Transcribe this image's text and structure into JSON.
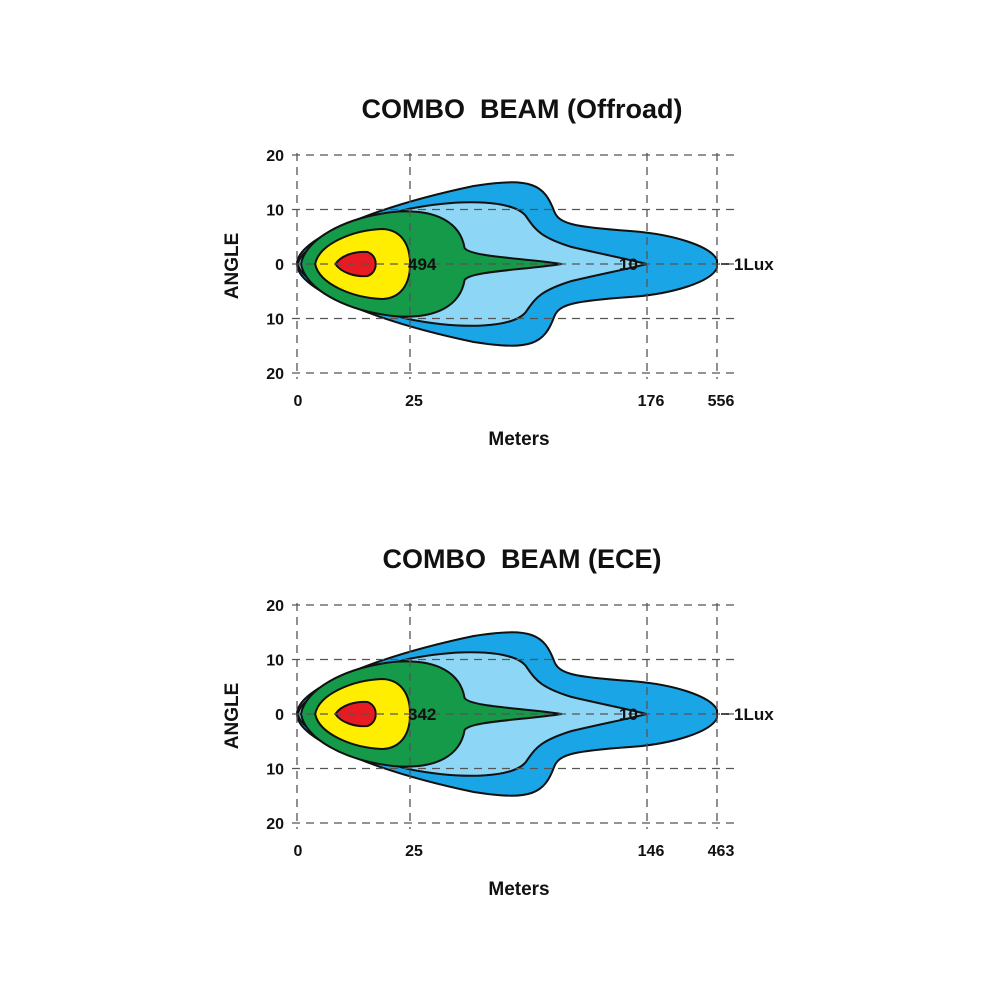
{
  "chart_data": [
    {
      "type": "beam pattern",
      "title": "COMBO  BEAM (Offroad)",
      "xlabel": "Meters",
      "ylabel": "ANGLE",
      "x_ticks": [
        "0",
        "25",
        "176",
        "556"
      ],
      "y_ticks": [
        "20",
        "10",
        "0",
        "10",
        "20"
      ],
      "annotations": [
        {
          "text": "494",
          "at_meters": 25
        },
        {
          "text": "10",
          "at_meters": 176
        },
        {
          "text": "1Lux",
          "at_meters": 556
        }
      ],
      "series": [
        {
          "name": "1Lux",
          "reach_m": 556,
          "color": "#1aa6e6"
        },
        {
          "name": "10",
          "reach_m": 176,
          "color": "#8dd6f5"
        },
        {
          "color": "#149a48"
        },
        {
          "color": "#ffee00"
        },
        {
          "color": "#e81b23"
        }
      ],
      "grid": true
    },
    {
      "type": "beam pattern",
      "title": "COMBO  BEAM (ECE)",
      "xlabel": "Meters",
      "ylabel": "ANGLE",
      "x_ticks": [
        "0",
        "25",
        "146",
        "463"
      ],
      "y_ticks": [
        "20",
        "10",
        "0",
        "10",
        "20"
      ],
      "annotations": [
        {
          "text": "342",
          "at_meters": 25
        },
        {
          "text": "10",
          "at_meters": 146
        },
        {
          "text": "1Lux",
          "at_meters": 463
        }
      ],
      "series": [
        {
          "name": "1Lux",
          "reach_m": 463,
          "color": "#1aa6e6"
        },
        {
          "name": "10",
          "reach_m": 146,
          "color": "#8dd6f5"
        },
        {
          "color": "#149a48"
        },
        {
          "color": "#ffee00"
        },
        {
          "color": "#e81b23"
        }
      ],
      "grid": true
    }
  ]
}
